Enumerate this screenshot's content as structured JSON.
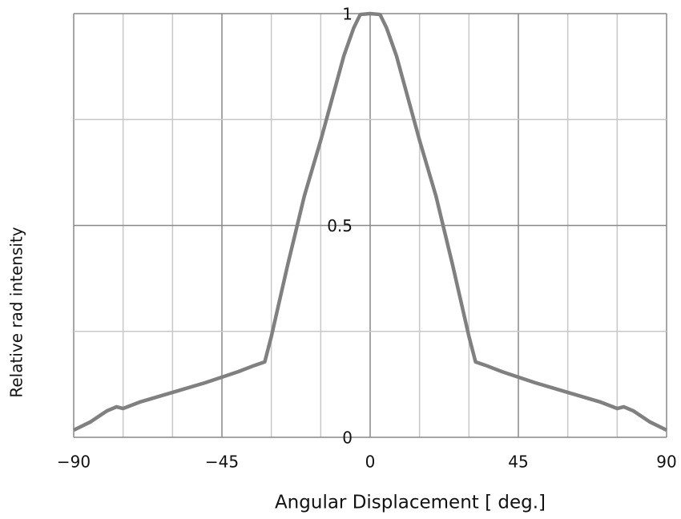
{
  "chart_data": {
    "type": "line",
    "xlabel": "Angular Displacement  [ deg.]",
    "ylabel": "Relative rad intensity",
    "x": [
      -90,
      -85,
      -80,
      -77,
      -75,
      -70,
      -60,
      -50,
      -40,
      -35,
      -32,
      -30,
      -25,
      -20,
      -15,
      -10,
      -8,
      -5,
      -3,
      0,
      3,
      5,
      8,
      10,
      15,
      20,
      25,
      30,
      32,
      35,
      40,
      50,
      60,
      70,
      75,
      77,
      80,
      85,
      90
    ],
    "series": [
      {
        "name": "Relative rad intensity",
        "color": "#808080",
        "values": [
          0.017,
          0.036,
          0.062,
          0.072,
          0.068,
          0.083,
          0.106,
          0.129,
          0.155,
          0.17,
          0.178,
          0.238,
          0.408,
          0.569,
          0.701,
          0.843,
          0.9,
          0.966,
          0.998,
          1,
          0.998,
          0.966,
          0.9,
          0.843,
          0.701,
          0.569,
          0.408,
          0.238,
          0.178,
          0.17,
          0.155,
          0.129,
          0.106,
          0.083,
          0.068,
          0.072,
          0.062,
          0.036,
          0.017
        ]
      }
    ],
    "xlim": [
      -90,
      90
    ],
    "ylim": [
      0,
      1
    ],
    "xticks": [
      {
        "value": -90,
        "label": "−90"
      },
      {
        "value": -45,
        "label": "−45"
      },
      0,
      45,
      90
    ],
    "yticks": [
      0,
      0.5,
      1
    ],
    "xgrid": [
      -90,
      -75,
      -60,
      -45,
      -30,
      -15,
      0,
      15,
      30,
      45,
      60,
      75,
      90
    ],
    "ygrid": [
      0,
      0.25,
      0.5,
      0.75,
      1
    ],
    "grid": true
  }
}
